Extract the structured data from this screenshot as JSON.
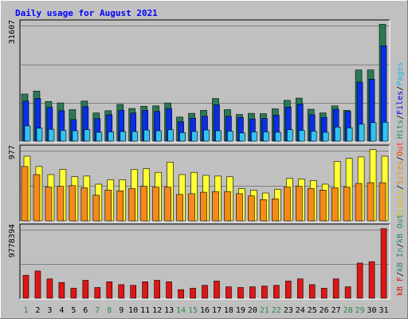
{
  "chart_data": {
    "type": "bar",
    "title": "Daily usage for August 2021",
    "categories": [
      "1",
      "2",
      "3",
      "4",
      "5",
      "6",
      "7",
      "8",
      "9",
      "10",
      "11",
      "12",
      "13",
      "14",
      "15",
      "16",
      "17",
      "18",
      "19",
      "20",
      "21",
      "22",
      "23",
      "24",
      "25",
      "26",
      "27",
      "28",
      "29",
      "30",
      "31"
    ],
    "weekend_days": [
      1,
      7,
      8,
      14,
      15,
      21,
      22,
      28,
      29
    ],
    "colors": {
      "background": "#c0c0c0",
      "grid": "#808080",
      "title": "#0000ff",
      "hits": "#2a7a55",
      "files": "#0a2ee8",
      "pages": "#33c3f0",
      "visits": "#ffff33",
      "sites": "#f58a1b",
      "kbytes": "#e01515",
      "day_weekday": "#000000",
      "day_weekend": "#2a8a4a"
    },
    "panels": [
      {
        "name": "hits-files-pages",
        "ymax_label": "31607",
        "ylim": [
          0,
          31607
        ],
        "legend": [
          {
            "text": "Hits",
            "color": "#2a8a6a"
          },
          {
            "text": "/",
            "color": "#000000"
          },
          {
            "text": "Files",
            "color": "#0000ff"
          },
          {
            "text": "/",
            "color": "#000000"
          },
          {
            "text": "Pages",
            "color": "#2ab0f0"
          }
        ],
        "series": [
          {
            "name": "Hits",
            "color_key": "hits",
            "values": [
              12700,
              13500,
              10700,
              10300,
              8500,
              10800,
              7600,
              8200,
              9900,
              8800,
              9400,
              9500,
              10300,
              6500,
              7500,
              8300,
              11500,
              8500,
              7200,
              7500,
              7400,
              8700,
              11000,
              11600,
              8600,
              7600,
              9500,
              8300,
              19200,
              19200,
              31500
            ]
          },
          {
            "name": "Files",
            "color_key": "files",
            "values": [
              10800,
              11500,
              9100,
              8200,
              5800,
              9300,
              6100,
              7100,
              8300,
              7600,
              8300,
              8000,
              8800,
              5200,
              6200,
              6700,
              9800,
              6700,
              6400,
              6000,
              6100,
              7000,
              9200,
              10000,
              7100,
              6400,
              8600,
              8000,
              15900,
              16700,
              25700
            ]
          },
          {
            "name": "Pages",
            "color_key": "pages",
            "values": [
              4100,
              3500,
              3200,
              2900,
              2800,
              3100,
              2400,
              2500,
              2600,
              2600,
              3000,
              2800,
              3100,
              2300,
              2600,
              3000,
              2800,
              2700,
              2200,
              2500,
              2500,
              2400,
              3100,
              2900,
              2700,
              2400,
              3800,
              3600,
              4600,
              5000,
              5100
            ]
          }
        ]
      },
      {
        "name": "visits-sites",
        "ymax_label": "977",
        "ylim": [
          0,
          977
        ],
        "legend": [
          {
            "text": "Visits",
            "color": "#e0c000"
          },
          {
            "text": "/",
            "color": "#000000"
          },
          {
            "text": "Sites",
            "color": "#f58a1b"
          },
          {
            "text": "/",
            "color": "#000000"
          },
          {
            "text": "Out",
            "color": "#ff3300"
          }
        ],
        "series": [
          {
            "name": "Visits",
            "color_key": "visits",
            "values": [
              880,
              740,
              630,
              700,
              600,
              610,
              500,
              560,
              560,
              700,
              710,
              660,
              800,
              630,
              660,
              620,
              610,
              600,
              440,
              420,
              380,
              430,
              580,
              570,
              550,
              500,
              810,
              850,
              870,
              970,
              880
            ]
          },
          {
            "name": "Sites",
            "color_key": "sites",
            "values": [
              740,
              630,
              460,
              470,
              480,
              450,
              350,
              420,
              410,
              440,
              470,
              460,
              460,
              360,
              370,
              390,
              400,
              400,
              370,
              340,
              290,
              300,
              460,
              470,
              440,
              420,
              450,
              460,
              510,
              520,
              520
            ]
          }
        ]
      },
      {
        "name": "kbytes",
        "ymax_label": "9778394",
        "ylim": [
          0,
          9778394
        ],
        "legend": [
          {
            "text": "kB F",
            "color": "#e01515"
          },
          {
            "text": "/",
            "color": "#000000"
          },
          {
            "text": "kB In",
            "color": "#2a8a6a"
          },
          {
            "text": "/",
            "color": "#000000"
          },
          {
            "text": "kB Out",
            "color": "#2a8a6a"
          }
        ],
        "series": [
          {
            "name": "kB F",
            "color_key": "kbytes",
            "values": [
              3200000,
              3800000,
              2700000,
              2200000,
              1400000,
              2500000,
              1500000,
              2300000,
              1900000,
              1800000,
              2300000,
              2500000,
              2300000,
              1200000,
              1400000,
              1800000,
              2400000,
              1600000,
              1500000,
              1600000,
              1700000,
              1800000,
              2400000,
              2700000,
              1900000,
              1400000,
              2700000,
              1600000,
              4900000,
              5100000,
              9700000
            ]
          }
        ]
      }
    ]
  }
}
